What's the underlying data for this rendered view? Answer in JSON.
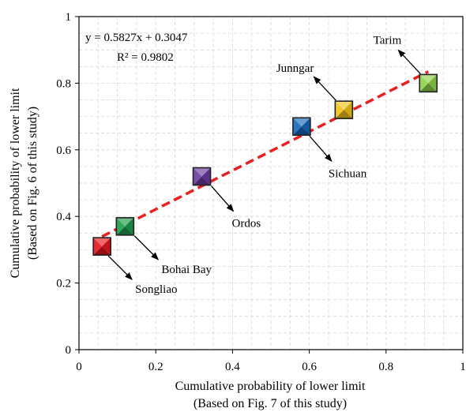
{
  "chart_data": {
    "type": "scatter",
    "title": "",
    "xlabel_line1": "Cumulative probability of lower limit",
    "xlabel_line2": "(Based on Fig. 7 of this study)",
    "ylabel_line1": "Cumulative probability of lower limit",
    "ylabel_line2": "(Based on Fig. 6 of this study)",
    "xlim": [
      0,
      1
    ],
    "ylim": [
      0,
      1
    ],
    "xticks": [
      0,
      0.2,
      0.4,
      0.6,
      0.8,
      1
    ],
    "yticks": [
      0,
      0.2,
      0.4,
      0.6,
      0.8,
      1
    ],
    "xtick_labels": [
      "0",
      "0.2",
      "0.4",
      "0.6",
      "0.8",
      "1"
    ],
    "ytick_labels": [
      "0",
      "0.2",
      "0.4",
      "0.6",
      "0.8",
      "1"
    ],
    "grid": true,
    "points": [
      {
        "label": "Songliao",
        "x": 0.06,
        "y": 0.31,
        "color": "#e8141b"
      },
      {
        "label": "Bohai Bay",
        "x": 0.12,
        "y": 0.37,
        "color": "#1b9a4a"
      },
      {
        "label": "Ordos",
        "x": 0.32,
        "y": 0.52,
        "color": "#6a3aa0"
      },
      {
        "label": "Sichuan",
        "x": 0.58,
        "y": 0.67,
        "color": "#1565b8"
      },
      {
        "label": "Junngar",
        "x": 0.69,
        "y": 0.72,
        "color": "#f3c316"
      },
      {
        "label": "Tarim",
        "x": 0.91,
        "y": 0.8,
        "color": "#8fd14a"
      }
    ],
    "trendline": {
      "slope": 0.5827,
      "intercept": 0.3047,
      "x_range": [
        0.06,
        0.91
      ],
      "color": "#e82020",
      "style": "dashed"
    },
    "equation_text": "y = 0.5827x + 0.3047",
    "r2_text": "R² = 0.9802"
  }
}
